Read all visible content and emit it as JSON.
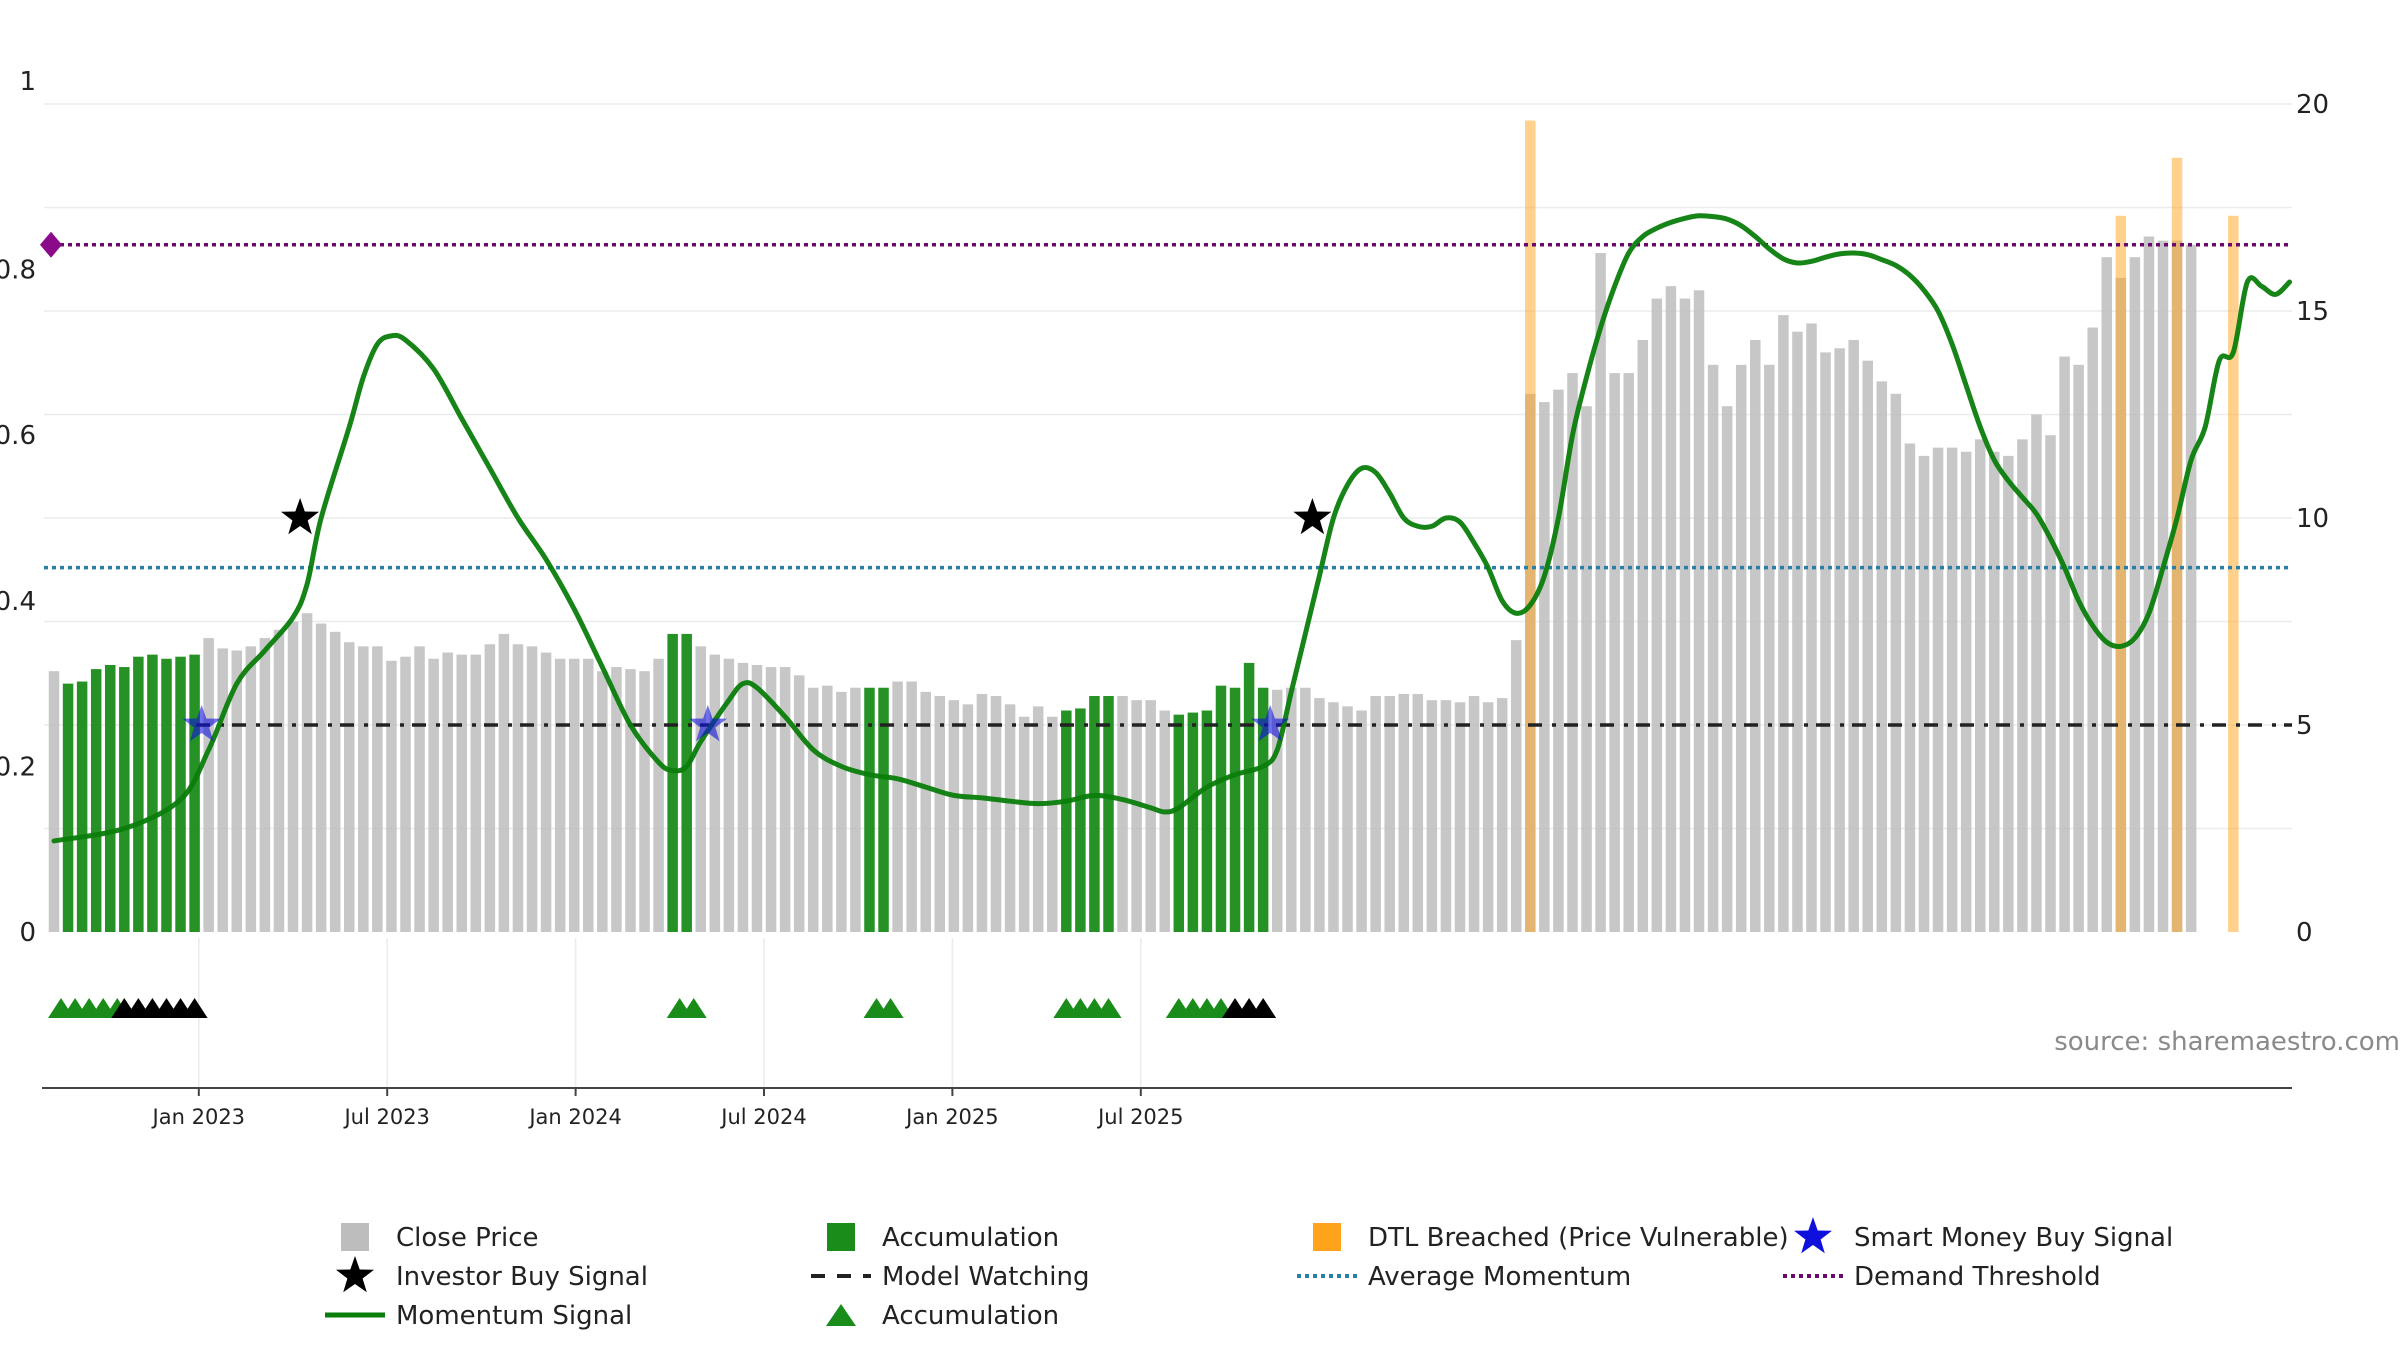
{
  "chart_data": {
    "type": "bar",
    "source": "source: sharemaestro.com",
    "x_start": "2022-09",
    "x_ticks": [
      "Jan 2023",
      "Jul 2023",
      "Jan 2024",
      "Jul 2024",
      "Jan 2025",
      "Jul 2025"
    ],
    "y_left": {
      "ticks": [
        "0",
        "0.2",
        "0.4",
        "0.6",
        "0.8",
        "1"
      ],
      "range": [
        0,
        1
      ]
    },
    "y_right": {
      "ticks": [
        "0",
        "5",
        "10",
        "15",
        "20"
      ],
      "range": [
        0,
        20
      ]
    },
    "close_price": [
      6.3,
      6.0,
      6.05,
      6.35,
      6.45,
      6.4,
      6.65,
      6.7,
      6.6,
      6.65,
      6.7,
      7.1,
      6.85,
      6.8,
      6.9,
      7.1,
      7.3,
      7.5,
      7.7,
      7.45,
      7.25,
      7.0,
      6.9,
      6.9,
      6.55,
      6.65,
      6.9,
      6.6,
      6.75,
      6.7,
      6.7,
      6.95,
      7.2,
      6.95,
      6.9,
      6.75,
      6.6,
      6.6,
      6.6,
      6.3,
      6.4,
      6.35,
      6.3,
      6.6,
      7.2,
      7.2,
      6.9,
      6.7,
      6.6,
      6.5,
      6.45,
      6.4,
      6.4,
      6.2,
      5.9,
      5.95,
      5.8,
      5.9,
      5.9,
      5.9,
      6.05,
      6.05,
      5.8,
      5.7,
      5.6,
      5.5,
      5.75,
      5.7,
      5.5,
      5.2,
      5.45,
      5.2,
      5.35,
      5.4,
      5.7,
      5.7,
      5.7,
      5.6,
      5.6,
      5.35,
      5.25,
      5.3,
      5.35,
      5.95,
      5.9,
      6.5,
      5.9,
      5.85,
      5.9,
      5.9,
      5.65,
      5.55,
      5.45,
      5.35,
      5.7,
      5.7,
      5.75,
      5.75,
      5.6,
      5.6,
      5.55,
      5.7,
      5.55,
      5.65,
      7.05,
      13.0,
      12.8,
      13.1,
      13.5,
      12.7,
      16.4,
      13.5,
      13.5,
      14.3,
      15.3,
      15.6,
      15.3,
      15.5,
      13.7,
      12.7,
      13.7,
      14.3,
      13.7,
      14.9,
      14.5,
      14.7,
      14.0,
      14.1,
      14.3,
      13.8,
      13.3,
      13.0,
      11.8,
      11.5,
      11.7,
      11.7,
      11.6,
      11.9,
      11.6,
      11.5,
      11.9,
      12.5,
      12.0,
      13.9,
      13.7,
      14.6,
      16.3,
      15.8,
      16.3,
      16.8,
      16.7,
      16.7,
      16.6
    ],
    "accumulation_bars": [
      1,
      2,
      3,
      4,
      5,
      6,
      7,
      8,
      9,
      10,
      44,
      45,
      58,
      59,
      72,
      73,
      74,
      75,
      80,
      81,
      82,
      83,
      84,
      85,
      86
    ],
    "dtl_breached": [
      {
        "i": 105,
        "h": 19.6
      },
      {
        "i": 147,
        "h": 17.3
      },
      {
        "i": 151,
        "h": 18.7
      },
      {
        "i": 155,
        "h": 17.3
      }
    ],
    "momentum_signal": [
      [
        0,
        0.11
      ],
      [
        5,
        0.125
      ],
      [
        9,
        0.16
      ],
      [
        11,
        0.22
      ],
      [
        13,
        0.3
      ],
      [
        15,
        0.34
      ],
      [
        17,
        0.38
      ],
      [
        18,
        0.42
      ],
      [
        19,
        0.5
      ],
      [
        21,
        0.61
      ],
      [
        22,
        0.67
      ],
      [
        23,
        0.71
      ],
      [
        24,
        0.72
      ],
      [
        25,
        0.715
      ],
      [
        27,
        0.68
      ],
      [
        29,
        0.62
      ],
      [
        31,
        0.56
      ],
      [
        33,
        0.5
      ],
      [
        35,
        0.45
      ],
      [
        37,
        0.39
      ],
      [
        39,
        0.32
      ],
      [
        41,
        0.25
      ],
      [
        43,
        0.205
      ],
      [
        44,
        0.195
      ],
      [
        45,
        0.2
      ],
      [
        46,
        0.23
      ],
      [
        48,
        0.28
      ],
      [
        49,
        0.3
      ],
      [
        50,
        0.295
      ],
      [
        52,
        0.26
      ],
      [
        54,
        0.22
      ],
      [
        56,
        0.2
      ],
      [
        58,
        0.19
      ],
      [
        60,
        0.185
      ],
      [
        62,
        0.175
      ],
      [
        64,
        0.165
      ],
      [
        66,
        0.162
      ],
      [
        68,
        0.158
      ],
      [
        70,
        0.155
      ],
      [
        72,
        0.158
      ],
      [
        74,
        0.165
      ],
      [
        76,
        0.16
      ],
      [
        78,
        0.15
      ],
      [
        79,
        0.145
      ],
      [
        80,
        0.15
      ],
      [
        82,
        0.175
      ],
      [
        84,
        0.19
      ],
      [
        86,
        0.2
      ],
      [
        87,
        0.22
      ],
      [
        88,
        0.29
      ],
      [
        89,
        0.36
      ],
      [
        90,
        0.43
      ],
      [
        91,
        0.5
      ],
      [
        92,
        0.54
      ],
      [
        93,
        0.56
      ],
      [
        94,
        0.555
      ],
      [
        95,
        0.53
      ],
      [
        96,
        0.5
      ],
      [
        97,
        0.49
      ],
      [
        98,
        0.49
      ],
      [
        99,
        0.5
      ],
      [
        100,
        0.495
      ],
      [
        101,
        0.47
      ],
      [
        102,
        0.44
      ],
      [
        103,
        0.4
      ],
      [
        104,
        0.385
      ],
      [
        105,
        0.395
      ],
      [
        106,
        0.43
      ],
      [
        107,
        0.5
      ],
      [
        108,
        0.6
      ],
      [
        109,
        0.67
      ],
      [
        110,
        0.73
      ],
      [
        111,
        0.78
      ],
      [
        112,
        0.82
      ],
      [
        113,
        0.84
      ],
      [
        114,
        0.85
      ],
      [
        115,
        0.857
      ],
      [
        116,
        0.862
      ],
      [
        117,
        0.865
      ],
      [
        118,
        0.864
      ],
      [
        119,
        0.861
      ],
      [
        120,
        0.853
      ],
      [
        121,
        0.84
      ],
      [
        122,
        0.825
      ],
      [
        123,
        0.813
      ],
      [
        124,
        0.808
      ],
      [
        125,
        0.81
      ],
      [
        126,
        0.815
      ],
      [
        127,
        0.819
      ],
      [
        128,
        0.82
      ],
      [
        129,
        0.818
      ],
      [
        130,
        0.812
      ],
      [
        131,
        0.805
      ],
      [
        132,
        0.793
      ],
      [
        133,
        0.775
      ],
      [
        134,
        0.75
      ],
      [
        135,
        0.71
      ],
      [
        136,
        0.66
      ],
      [
        137,
        0.61
      ],
      [
        138,
        0.57
      ],
      [
        139,
        0.545
      ],
      [
        140,
        0.525
      ],
      [
        141,
        0.505
      ],
      [
        142,
        0.475
      ],
      [
        143,
        0.44
      ],
      [
        144,
        0.4
      ],
      [
        145,
        0.37
      ],
      [
        146,
        0.35
      ],
      [
        147,
        0.345
      ],
      [
        148,
        0.355
      ],
      [
        149,
        0.385
      ],
      [
        150,
        0.44
      ],
      [
        151,
        0.5
      ],
      [
        152,
        0.57
      ],
      [
        153,
        0.61
      ],
      [
        154,
        0.69
      ],
      [
        155,
        0.7
      ],
      [
        156,
        0.785
      ],
      [
        157,
        0.78
      ],
      [
        158,
        0.77
      ],
      [
        159,
        0.785
      ]
    ],
    "investor_buy_signal": [
      {
        "i": 17.5,
        "y": 0.5
      },
      {
        "i": 89.5,
        "y": 0.5
      }
    ],
    "smart_money_buy_signal": [
      {
        "i": 10.5,
        "y": 0.25
      },
      {
        "i": 46.5,
        "y": 0.25
      },
      {
        "i": 86.5,
        "y": 0.25
      }
    ],
    "model_watching": 0.25,
    "average_momentum": 0.44,
    "demand_threshold": 0.83,
    "accumulation_markers_green": [
      0.5,
      1.5,
      2.5,
      3.5,
      4.5,
      44.5,
      45.5,
      58.5,
      59.5,
      72,
      73,
      74,
      75,
      80,
      81,
      82,
      83
    ],
    "accumulation_markers_black": [
      5,
      6,
      7,
      8,
      9,
      10,
      84,
      85,
      86
    ],
    "colors": {
      "close_price": "#bdbdbd",
      "accumulation": "#1a8c1a",
      "dtl_breached": "#ffa31a",
      "momentum": "#0a7d0a",
      "investor": "#000000",
      "smart_money": "#1010dd",
      "model_watching": "#222222",
      "average_momentum": "#2a7fa8",
      "demand_threshold": "#6a0a6a"
    },
    "legend": [
      {
        "label": "Close Price",
        "kind": "sq-gray"
      },
      {
        "label": "Accumulation",
        "kind": "sq-green"
      },
      {
        "label": "DTL Breached (Price Vulnerable)",
        "kind": "sq-orange"
      },
      {
        "label": "Smart Money Buy Signal",
        "kind": "star-blue"
      },
      {
        "label": "Investor Buy Signal",
        "kind": "star-black"
      },
      {
        "label": "Model Watching",
        "kind": "dash-black"
      },
      {
        "label": "Average Momentum",
        "kind": "dot-blue"
      },
      {
        "label": "Demand Threshold",
        "kind": "dot-purple"
      },
      {
        "label": "Momentum Signal",
        "kind": "line-green"
      },
      {
        "label": "Accumulation",
        "kind": "tri-green"
      }
    ]
  }
}
